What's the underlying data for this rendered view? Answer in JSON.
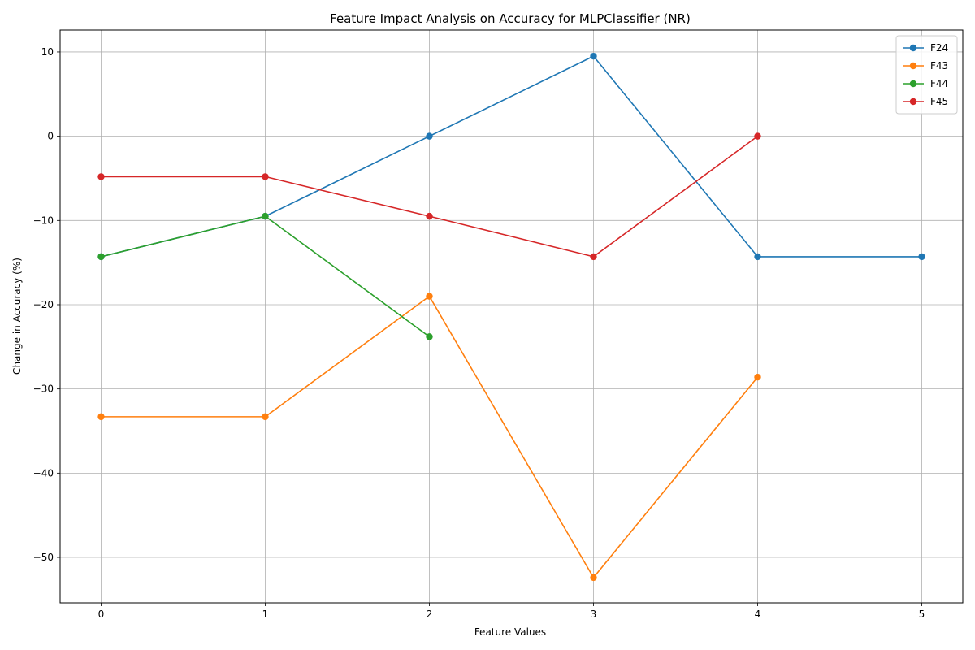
{
  "chart_data": {
    "type": "line",
    "title": "Feature Impact Analysis on Accuracy for MLPClassifier (NR)",
    "xlabel": "Feature Values",
    "ylabel": "Change in Accuracy (%)",
    "xlim": [
      -0.25,
      5.25
    ],
    "ylim": [
      -55.4,
      12.6
    ],
    "xticks": [
      0,
      1,
      2,
      3,
      4,
      5
    ],
    "yticks": [
      10,
      0,
      -10,
      -20,
      -30,
      -40,
      -50
    ],
    "ytick_labels": [
      "10",
      "0",
      "−10",
      "−20",
      "−30",
      "−40",
      "−50"
    ],
    "grid": true,
    "legend_position": "top-right",
    "marker": "circle",
    "series": [
      {
        "name": "F24",
        "color": "#1f77b4",
        "x": [
          0,
          1,
          2,
          3,
          4,
          5
        ],
        "y": [
          -14.3,
          -9.5,
          0.0,
          9.5,
          -14.3,
          -14.3
        ]
      },
      {
        "name": "F43",
        "color": "#ff7f0e",
        "x": [
          0,
          1,
          2,
          3,
          4
        ],
        "y": [
          -33.3,
          -33.3,
          -19.0,
          -52.4,
          -28.6
        ]
      },
      {
        "name": "F44",
        "color": "#2ca02c",
        "x": [
          0,
          1,
          2
        ],
        "y": [
          -14.3,
          -9.5,
          -23.8
        ]
      },
      {
        "name": "F45",
        "color": "#d62728",
        "x": [
          0,
          1,
          2,
          3,
          4
        ],
        "y": [
          -4.8,
          -4.8,
          -9.5,
          -14.3,
          0.0
        ]
      }
    ]
  }
}
